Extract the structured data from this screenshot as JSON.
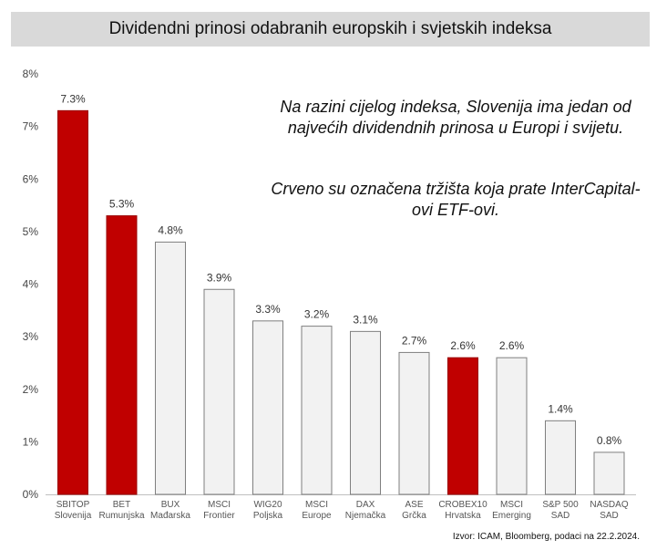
{
  "title": "Dividendni prinosi odabranih europskih i svjetskih indeksa",
  "annotations": {
    "line1": "Na razini cijelog indeksa, Slovenija ima jedan od najvećih dividendnih prinosa u Europi i svijetu.",
    "line2": "Crveno su označena tržišta koja prate InterCapital-ovi ETF-ovi."
  },
  "source": "Izvor: ICAM, Bloomberg, podaci na 22.2.2024.",
  "colors": {
    "highlight": "#c00000",
    "normal": "#f2f2f2",
    "bar_border": "#7f7f7f"
  },
  "chart_data": {
    "type": "bar",
    "categories": [
      [
        "SBITOP",
        "Slovenija"
      ],
      [
        "BET",
        "Rumunjska"
      ],
      [
        "BUX",
        "Mađarska"
      ],
      [
        "MSCI",
        "Frontier"
      ],
      [
        "WIG20",
        "Poljska"
      ],
      [
        "MSCI",
        "Europe"
      ],
      [
        "DAX",
        "Njemačka"
      ],
      [
        "ASE",
        "Grčka"
      ],
      [
        "CROBEX10",
        "Hrvatska"
      ],
      [
        "MSCI",
        "Emerging"
      ],
      [
        "S&P 500",
        "SAD"
      ],
      [
        "NASDAQ",
        "SAD"
      ]
    ],
    "values": [
      7.3,
      5.3,
      4.8,
      3.9,
      3.3,
      3.2,
      3.1,
      2.7,
      2.6,
      2.6,
      1.4,
      0.8
    ],
    "value_labels": [
      "7.3%",
      "5.3%",
      "4.8%",
      "3.9%",
      "3.3%",
      "3.2%",
      "3.1%",
      "2.7%",
      "2.6%",
      "2.6%",
      "1.4%",
      "0.8%"
    ],
    "highlighted": [
      true,
      true,
      false,
      false,
      false,
      false,
      false,
      false,
      true,
      false,
      false,
      false
    ],
    "ylim": [
      0,
      8
    ],
    "yticks": [
      0,
      1,
      2,
      3,
      4,
      5,
      6,
      7,
      8
    ],
    "ytick_labels": [
      "0%",
      "1%",
      "2%",
      "3%",
      "4%",
      "5%",
      "6%",
      "7%",
      "8%"
    ],
    "grid": false,
    "legend": "none"
  }
}
